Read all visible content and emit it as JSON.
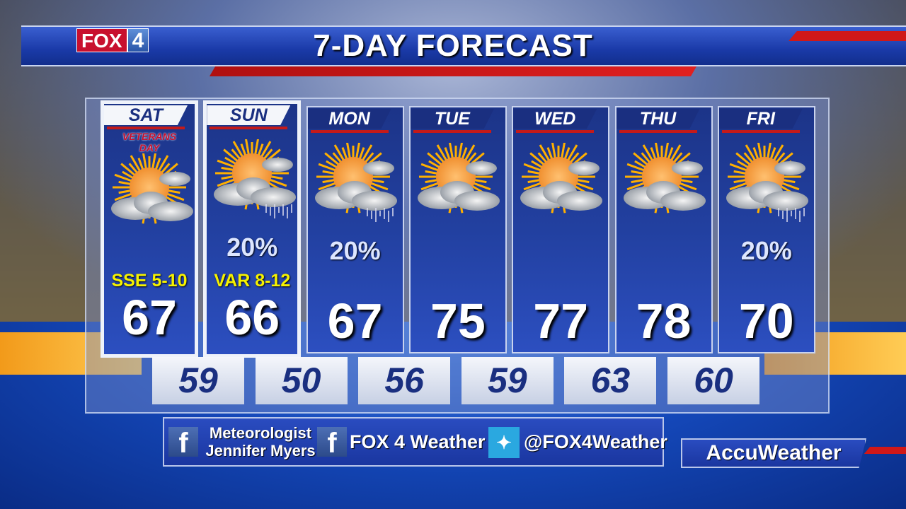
{
  "header": {
    "title": "7-DAY FORECAST",
    "logo_text": "FOX 4"
  },
  "days": [
    {
      "day": "SAT",
      "banner": "VETERANS DAY",
      "icon": "partly-sunny-icon",
      "pop": "",
      "wind": "SSE 5-10",
      "high": "67",
      "highlight": true
    },
    {
      "day": "SUN",
      "icon": "partly-sunny-showers-icon",
      "pop": "20%",
      "wind": "VAR 8-12",
      "high": "66",
      "highlight": true
    },
    {
      "day": "MON",
      "icon": "partly-sunny-showers-icon",
      "pop": "20%",
      "wind": "",
      "high": "67",
      "highlight": false
    },
    {
      "day": "TUE",
      "icon": "partly-sunny-icon",
      "pop": "",
      "wind": "",
      "high": "75",
      "highlight": false
    },
    {
      "day": "WED",
      "icon": "partly-sunny-icon",
      "pop": "",
      "wind": "",
      "high": "77",
      "highlight": false
    },
    {
      "day": "THU",
      "icon": "partly-sunny-icon",
      "pop": "",
      "wind": "",
      "high": "78",
      "highlight": false
    },
    {
      "day": "FRI",
      "icon": "partly-sunny-showers-icon",
      "pop": "20%",
      "wind": "",
      "high": "70",
      "highlight": false
    }
  ],
  "lows": [
    "59",
    "50",
    "56",
    "59",
    "63",
    "60"
  ],
  "social": {
    "fb1_line1": "Meteorologist",
    "fb1_line2": "Jennifer Myers",
    "fb2": "FOX 4 Weather",
    "twitter": "@FOX4Weather"
  },
  "footer": {
    "brand": "AccuWeather"
  },
  "colors": {
    "accent_red": "#c41a1a",
    "navy": "#1a2f80",
    "wind_yellow": "#f6f200"
  }
}
